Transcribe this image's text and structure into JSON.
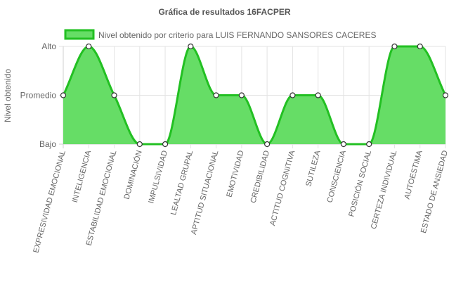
{
  "chart_data": {
    "type": "area",
    "title": "Gráfica de resultados 16FACPER",
    "ylabel": "Nivel obtenido",
    "xlabel": "",
    "y_levels": [
      "Bajo",
      "Promedio",
      "Alto"
    ],
    "ylim": [
      0,
      2
    ],
    "legend_position": "top",
    "grid": true,
    "categories": [
      "EXPRESIVIDAD EMOCIONAL",
      "INTELIGENCIA",
      "ESTABILIDAD EMOCIONAL",
      "DOMINACIÓN",
      "IMPULSIVIDAD",
      "LEALTAD GRUPAL",
      "APTITUD SITUACIONAL",
      "EMOTIVIDAD",
      "CREDIBILIDAD",
      "ACTITUD COGNITIVA",
      "SUTILEZA",
      "CONSCIENCIA",
      "POSICIÓN SOCIAL",
      "CERTEZA INDIVIDUAL",
      "AUTOESTIMA",
      "ESTADO DE ANSIEDAD"
    ],
    "series": [
      {
        "name": "Nivel obtenido por criterio para LUIS FERNANDO SANSORES CACERES",
        "values": [
          1,
          2,
          1,
          0,
          0,
          2,
          1,
          1,
          0,
          1,
          1,
          0,
          0,
          2,
          2,
          1
        ],
        "fill_color": "#66dd66",
        "line_color": "#22c022"
      }
    ]
  }
}
